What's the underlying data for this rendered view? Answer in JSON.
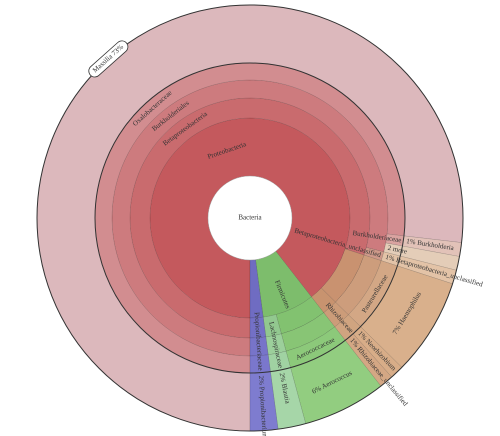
{
  "chart_data": {
    "type": "sunburst",
    "root": {
      "name": "Bacteria",
      "value": 95,
      "color": "#ffffff",
      "children": [
        {
          "name": "Proteobacteria",
          "value": 85,
          "color": "#c4595d",
          "children": [
            {
              "name": "Betaproteobacteria",
              "value": 76,
              "color": "#c96b6e",
              "children": [
                {
                  "name": "Burkholderiales",
                  "value": 75,
                  "color": "#cd7b7e",
                  "children": [
                    {
                      "name": "Oxalobacteraceae",
                      "value": 73,
                      "color": "#d28d90",
                      "children": [
                        {
                          "label": "Massilia 73%",
                          "value": 73,
                          "color": "#dcb8bc"
                        }
                      ]
                    },
                    {
                      "name": "Burkholderiaceae",
                      "value": 1,
                      "color": "#d9a3a0",
                      "children": [
                        {
                          "label": "1% Burkholderia",
                          "value": 1,
                          "color": "#e2c2b8"
                        }
                      ]
                    },
                    {
                      "label": "2 more",
                      "value": 1,
                      "color": "#e4cdb8"
                    }
                  ]
                },
                {
                  "name": "Betaproteobacteria_unclassified",
                  "value": 1,
                  "color": "#cf9a8a",
                  "children": [
                    {
                      "label": "1% Betaproteobacteria_unclassified",
                      "value": 1,
                      "color": "#e3c3a7"
                    }
                  ]
                }
              ]
            },
            {
              "name": null,
              "value": 7,
              "color": "#c99270",
              "children": [
                {
                  "name": null,
                  "value": 7,
                  "color": "#cd9d7c",
                  "children": [
                    {
                      "name": "Pasteurellaceae",
                      "value": 7,
                      "color": "#d3a785",
                      "children": [
                        {
                          "label": "7% Haemophilus",
                          "value": 7,
                          "color": "#d9b08c"
                        }
                      ]
                    }
                  ]
                }
              ]
            },
            {
              "name": null,
              "value": 2,
              "color": "#c8936f",
              "children": [
                {
                  "name": null,
                  "value": 2,
                  "color": "#cc9c79",
                  "children": [
                    {
                      "name": "Rhizobiaceae",
                      "value": 2,
                      "color": "#d0a480",
                      "children": [
                        {
                          "label": "1% Neorhizobium",
                          "value": 1,
                          "color": "#d8ad88"
                        },
                        {
                          "label": "1% Rhizobiaceae_unclassified",
                          "value": 1,
                          "color": "#d4a784"
                        }
                      ]
                    }
                  ]
                }
              ]
            }
          ]
        },
        {
          "name": "Firmicutes",
          "value": 8,
          "color": "#7dbd6c",
          "children": [
            {
              "name": null,
              "value": 6,
              "color": "#82c270",
              "children": [
                {
                  "name": null,
                  "value": 6,
                  "color": "#88c575",
                  "children": [
                    {
                      "name": "Aerococcaceae",
                      "value": 6,
                      "color": "#8cc97a",
                      "children": [
                        {
                          "label": "6% Aerococcus",
                          "value": 6,
                          "color": "#92cd80"
                        }
                      ]
                    }
                  ]
                }
              ]
            },
            {
              "name": null,
              "value": 2,
              "color": "#92c88f",
              "children": [
                {
                  "name": null,
                  "value": 2,
                  "color": "#9ccf9b",
                  "children": [
                    {
                      "name": "Lachnospiraceae",
                      "value": 2,
                      "color": "#a0d2a2",
                      "children": [
                        {
                          "label": "2% Blautia",
                          "value": 2,
                          "color": "#a6d6a8"
                        }
                      ]
                    }
                  ]
                }
              ]
            }
          ]
        },
        {
          "name": null,
          "value": 2,
          "color": "#6f6cc2",
          "children": [
            {
              "name": null,
              "value": 2,
              "color": "#7370c6",
              "children": [
                {
                  "name": null,
                  "value": 2,
                  "color": "#7774c9",
                  "children": [
                    {
                      "name": "Propionibacteriaceae",
                      "value": 2,
                      "color": "#7a77cc",
                      "children": [
                        {
                          "label": "2% Propionibacterium",
                          "value": 2,
                          "color": "#7e7ccf"
                        }
                      ]
                    }
                  ]
                }
              ]
            }
          ]
        }
      ]
    }
  }
}
